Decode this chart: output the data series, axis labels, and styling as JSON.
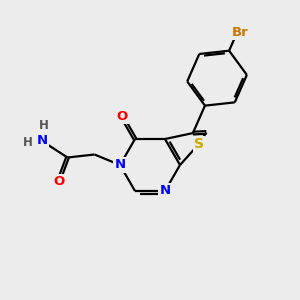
{
  "bg_color": "#ececec",
  "bond_color": "#000000",
  "bond_lw": 1.6,
  "atom_colors": {
    "N": "#0000ff",
    "O": "#ff0000",
    "S": "#ccaa00",
    "Br": "#cc7700",
    "H": "#555555",
    "C": "#000000"
  },
  "font_size": 9.5,
  "fig_bg": "#ececec"
}
